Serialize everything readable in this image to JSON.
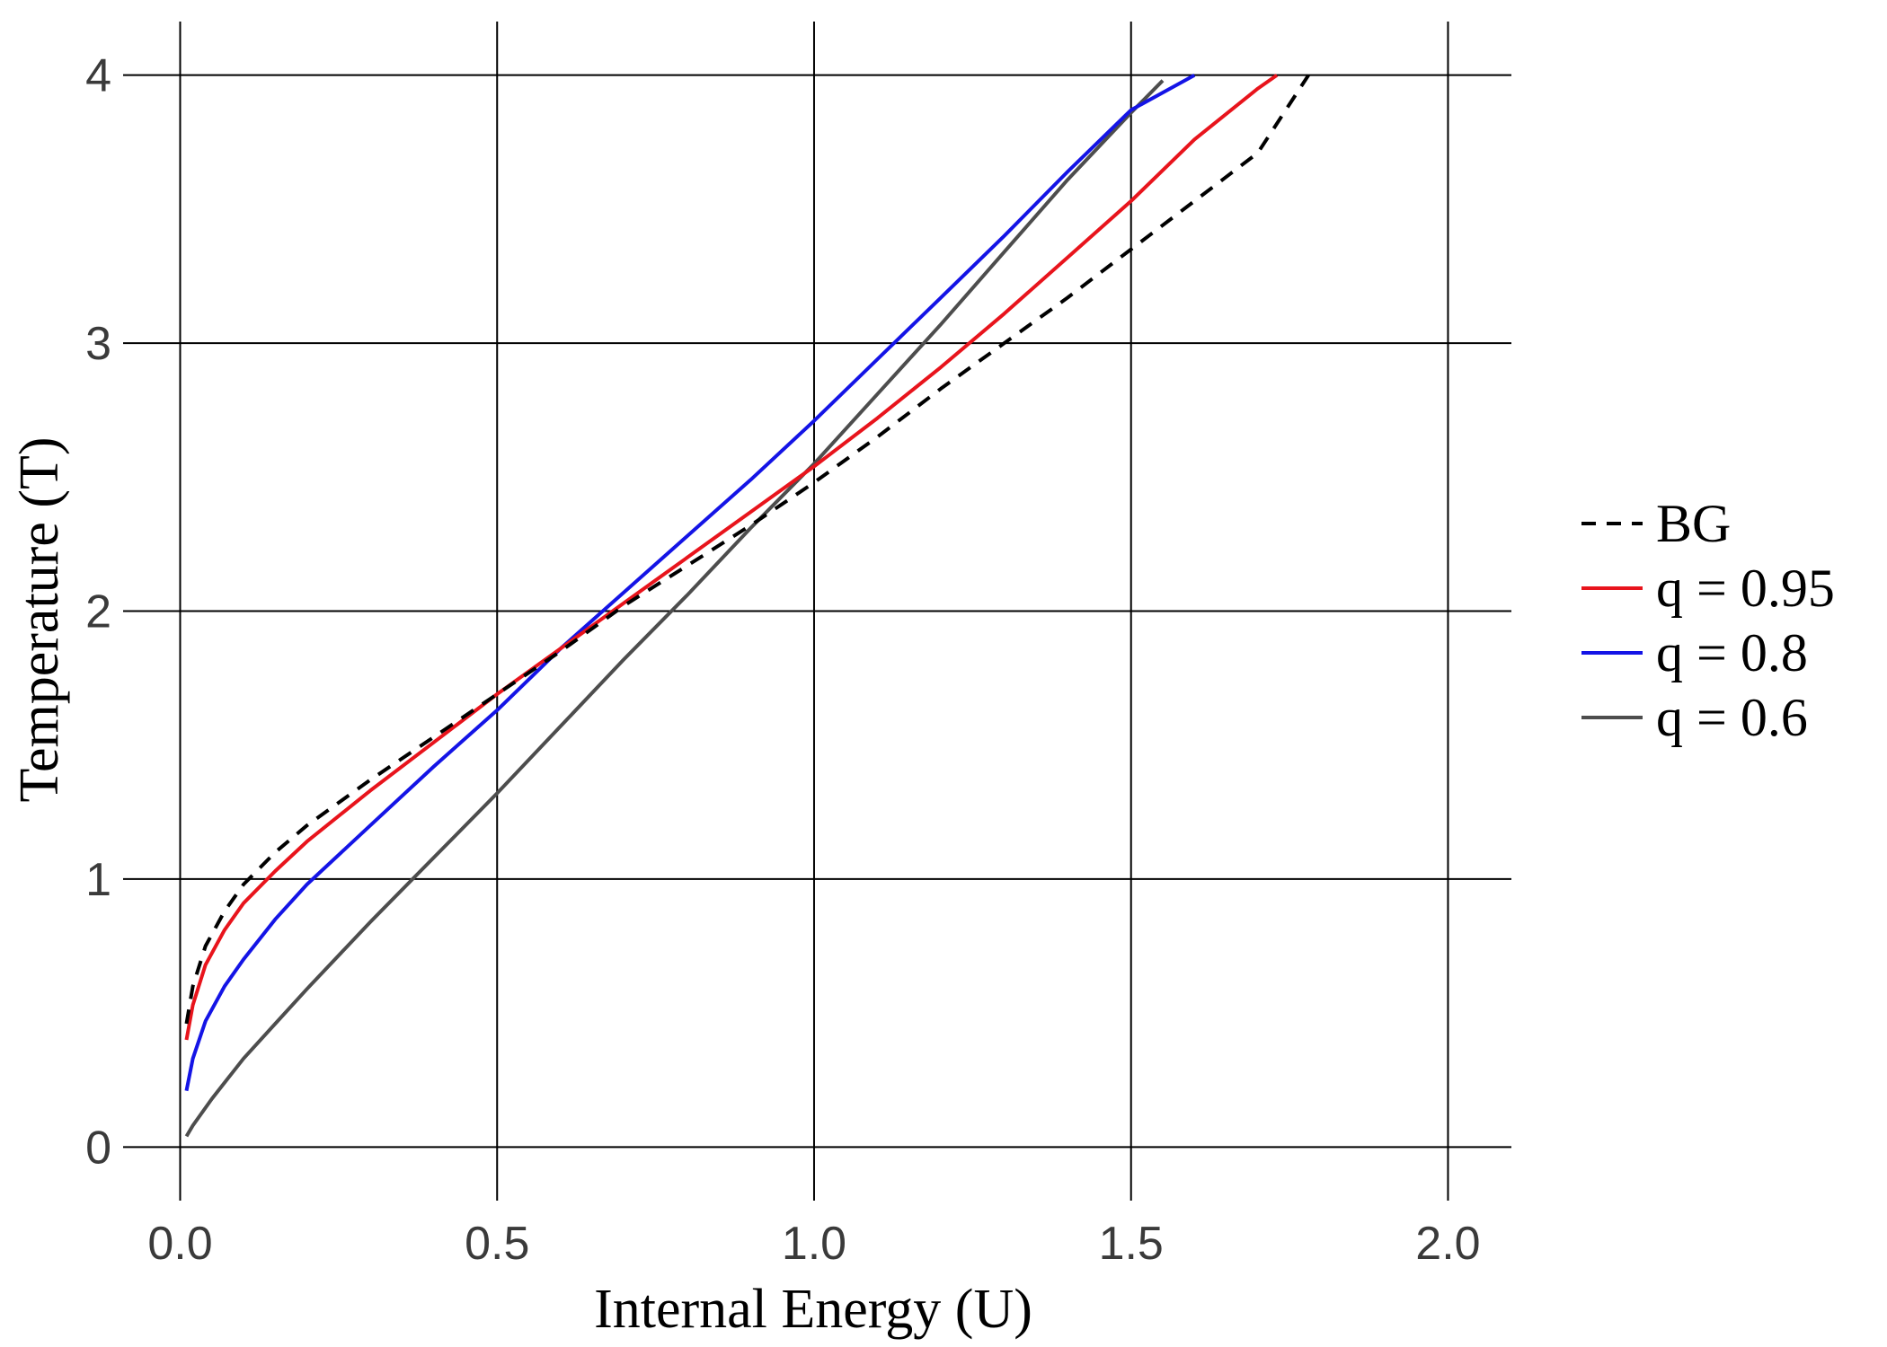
{
  "chart_data": {
    "type": "line",
    "title": "",
    "xlabel": "Internal Energy (U)",
    "ylabel": "Temperature (T)",
    "xlim": [
      -0.09,
      2.1
    ],
    "ylim": [
      -0.2,
      4.2
    ],
    "xticks": [
      0.0,
      0.5,
      1.0,
      1.5,
      2.0
    ],
    "xtick_labels": [
      "0.0",
      "0.5",
      "1.0",
      "1.5",
      "2.0"
    ],
    "yticks": [
      0,
      1,
      2,
      3,
      4
    ],
    "ytick_labels": [
      "0",
      "1",
      "2",
      "3",
      "4"
    ],
    "grid": true,
    "legend_position": "right",
    "series": [
      {
        "name": "BG",
        "color": "#000000",
        "dash": "dashed",
        "x": [
          0.01,
          0.02,
          0.04,
          0.07,
          0.1,
          0.15,
          0.2,
          0.3,
          0.4,
          0.5,
          0.6,
          0.7,
          0.8,
          0.9,
          1.0,
          1.1,
          1.2,
          1.3,
          1.4,
          1.5,
          1.6,
          1.7,
          1.78
        ],
        "y": [
          0.46,
          0.6,
          0.75,
          0.88,
          0.98,
          1.1,
          1.2,
          1.37,
          1.53,
          1.69,
          1.85,
          2.02,
          2.17,
          2.32,
          2.48,
          2.65,
          2.83,
          3.0,
          3.17,
          3.35,
          3.53,
          3.71,
          4.0
        ]
      },
      {
        "name": "q = 0.95",
        "color": "#e8141c",
        "dash": "solid",
        "x": [
          0.01,
          0.02,
          0.04,
          0.07,
          0.1,
          0.15,
          0.2,
          0.3,
          0.4,
          0.5,
          0.6,
          0.7,
          0.8,
          0.9,
          1.0,
          1.1,
          1.2,
          1.3,
          1.4,
          1.5,
          1.6,
          1.7,
          1.73
        ],
        "y": [
          0.4,
          0.53,
          0.68,
          0.81,
          0.91,
          1.03,
          1.14,
          1.33,
          1.51,
          1.69,
          1.86,
          2.03,
          2.2,
          2.37,
          2.54,
          2.72,
          2.91,
          3.11,
          3.32,
          3.53,
          3.76,
          3.95,
          4.0
        ]
      },
      {
        "name": "q = 0.8",
        "color": "#1414e6",
        "dash": "solid",
        "x": [
          0.01,
          0.02,
          0.04,
          0.07,
          0.1,
          0.15,
          0.2,
          0.3,
          0.4,
          0.5,
          0.6,
          0.7,
          0.8,
          0.9,
          1.0,
          1.1,
          1.2,
          1.3,
          1.4,
          1.5,
          1.6
        ],
        "y": [
          0.21,
          0.33,
          0.47,
          0.6,
          0.7,
          0.85,
          0.98,
          1.2,
          1.42,
          1.63,
          1.86,
          2.07,
          2.28,
          2.49,
          2.71,
          2.94,
          3.17,
          3.4,
          3.64,
          3.87,
          4.0
        ]
      },
      {
        "name": "q = 0.6",
        "color": "#4d4d4d",
        "dash": "solid",
        "x": [
          0.01,
          0.02,
          0.05,
          0.1,
          0.15,
          0.2,
          0.3,
          0.4,
          0.5,
          0.6,
          0.7,
          0.8,
          0.9,
          1.0,
          1.1,
          1.2,
          1.3,
          1.4,
          1.5,
          1.55
        ],
        "y": [
          0.04,
          0.08,
          0.18,
          0.33,
          0.46,
          0.59,
          0.84,
          1.08,
          1.32,
          1.57,
          1.82,
          2.06,
          2.31,
          2.55,
          2.81,
          3.07,
          3.34,
          3.61,
          3.86,
          3.98
        ]
      }
    ]
  }
}
